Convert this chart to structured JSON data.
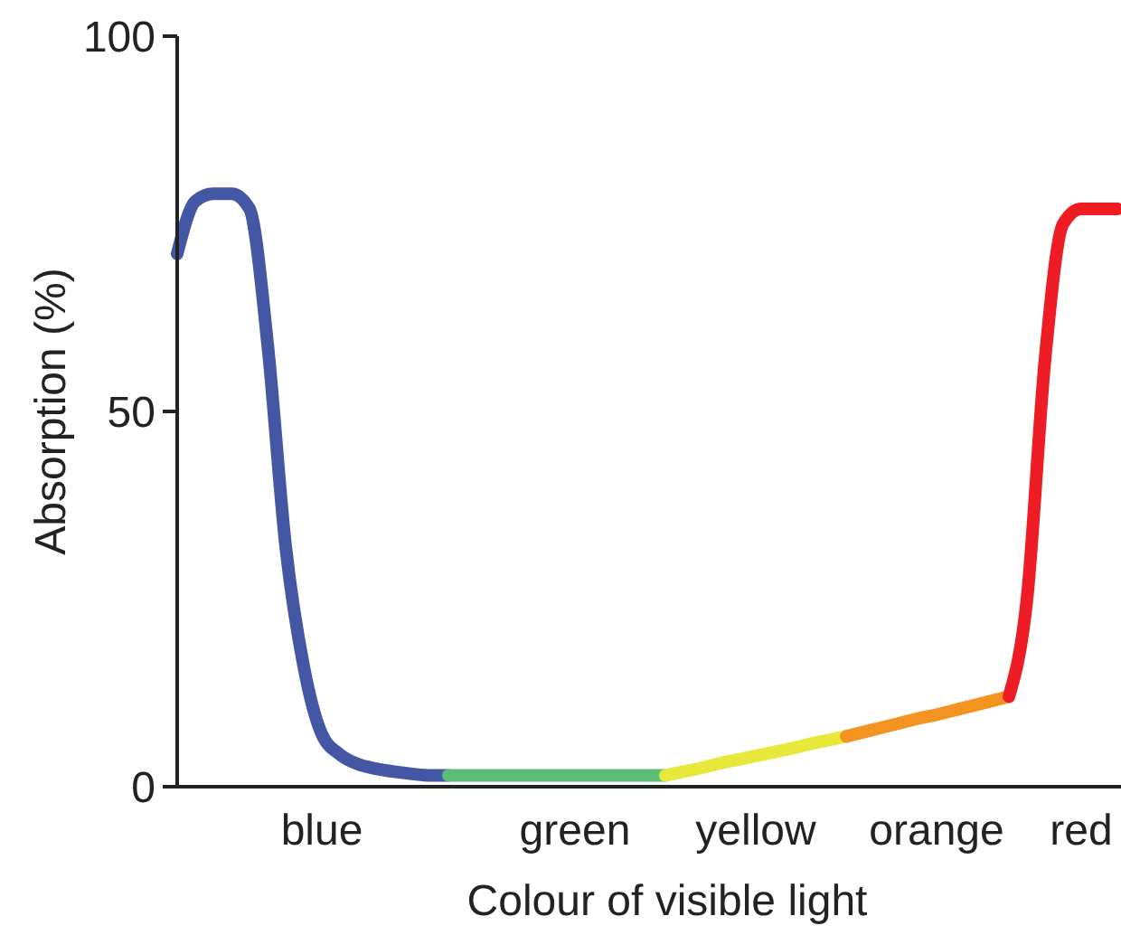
{
  "chart_data": {
    "type": "line",
    "xlabel": "Colour of visible light",
    "ylabel": "Absorption (%)",
    "categories": [
      null,
      null,
      null,
      null,
      null,
      null,
      null,
      null,
      "blue",
      null,
      null,
      null,
      null,
      null,
      null,
      null,
      null,
      null,
      null,
      null,
      null,
      null,
      "green",
      null,
      null,
      null,
      null,
      null,
      null,
      null,
      null,
      null,
      "yellow",
      null,
      null,
      null,
      null,
      null,
      null,
      null,
      null,
      null,
      "orange",
      null,
      null,
      null,
      null,
      null,
      null,
      null,
      "red",
      null,
      null
    ],
    "ylim": [
      0,
      100
    ],
    "yticks": [
      0,
      50,
      100
    ],
    "series": [
      {
        "color": "#4457a5",
        "values": [
          71,
          78,
          79,
          79,
          77,
          59,
          32,
          16,
          7,
          4.3,
          3,
          2.4,
          2,
          1.7,
          1.5,
          1.5,
          null,
          null,
          null,
          null,
          null,
          null,
          null,
          null,
          null,
          null,
          null,
          null,
          null,
          null,
          null,
          null,
          null,
          null,
          null,
          null,
          null,
          null,
          null,
          null,
          null,
          null,
          null,
          null,
          null,
          null,
          null,
          null,
          null,
          null,
          null,
          null,
          null
        ]
      },
      {
        "color": "#5dbd76",
        "values": [
          null,
          null,
          null,
          null,
          null,
          null,
          null,
          null,
          null,
          null,
          null,
          null,
          null,
          null,
          null,
          1.5,
          1.5,
          1.5,
          1.5,
          1.5,
          1.5,
          1.5,
          1.5,
          1.5,
          1.5,
          1.5,
          1.5,
          1.5,
          null,
          null,
          null,
          null,
          null,
          null,
          null,
          null,
          null,
          null,
          null,
          null,
          null,
          null,
          null,
          null,
          null,
          null,
          null,
          null,
          null,
          null,
          null,
          null,
          null
        ]
      },
      {
        "color": "#e8e83c",
        "values": [
          null,
          null,
          null,
          null,
          null,
          null,
          null,
          null,
          null,
          null,
          null,
          null,
          null,
          null,
          null,
          null,
          null,
          null,
          null,
          null,
          null,
          null,
          null,
          null,
          null,
          null,
          null,
          1.5,
          2,
          2.5,
          3.1,
          3.6,
          4.1,
          4.6,
          5.1,
          5.7,
          6.2,
          6.7,
          null,
          null,
          null,
          null,
          null,
          null,
          null,
          null,
          null,
          null,
          null,
          null,
          null,
          null,
          null
        ]
      },
      {
        "color": "#f39421",
        "values": [
          null,
          null,
          null,
          null,
          null,
          null,
          null,
          null,
          null,
          null,
          null,
          null,
          null,
          null,
          null,
          null,
          null,
          null,
          null,
          null,
          null,
          null,
          null,
          null,
          null,
          null,
          null,
          null,
          null,
          null,
          null,
          null,
          null,
          null,
          null,
          null,
          null,
          6.7,
          7.3,
          7.9,
          8.5,
          9.1,
          9.6,
          10.2,
          10.8,
          11.4,
          12,
          null,
          null,
          null,
          null,
          null,
          null
        ]
      },
      {
        "color": "#ee1c25",
        "values": [
          null,
          null,
          null,
          null,
          null,
          null,
          null,
          null,
          null,
          null,
          null,
          null,
          null,
          null,
          null,
          null,
          null,
          null,
          null,
          null,
          null,
          null,
          null,
          null,
          null,
          null,
          null,
          null,
          null,
          null,
          null,
          null,
          null,
          null,
          null,
          null,
          null,
          null,
          null,
          null,
          null,
          null,
          null,
          null,
          null,
          null,
          12,
          25,
          57,
          75,
          77,
          77,
          77
        ]
      }
    ]
  }
}
